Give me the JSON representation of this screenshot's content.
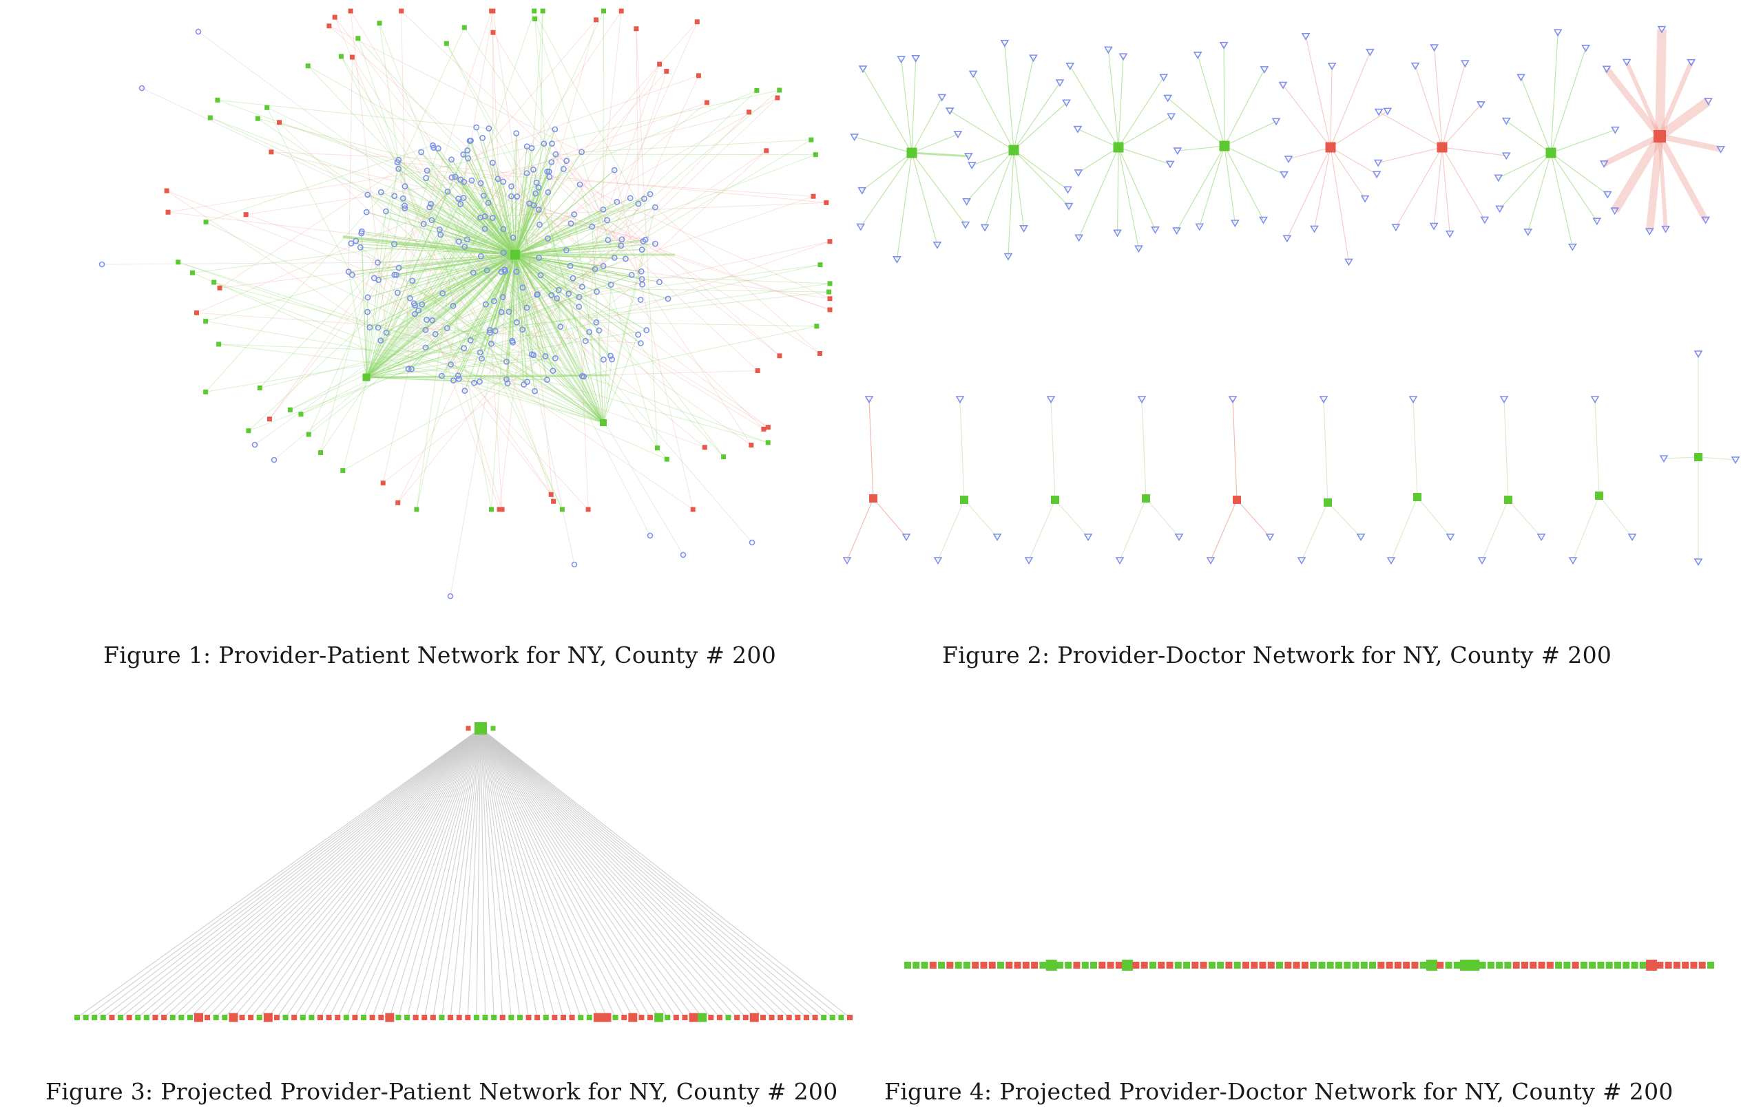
{
  "figures": [
    {
      "id": 1,
      "caption": "Figure 1: Provider-Patient Network for NY, County # 200"
    },
    {
      "id": 2,
      "caption": "Figure 2: Provider-Doctor Network for NY, County # 200"
    },
    {
      "id": 3,
      "caption": "Figure 3: Projected Provider-Patient Network for NY, County # 200"
    },
    {
      "id": 4,
      "caption": "Figure 4: Projected Provider-Doctor Network for NY, County # 200"
    }
  ],
  "colors": {
    "provider_green": "#5cc832",
    "provider_red": "#e8584a",
    "patient_blue": "#7f8ff0",
    "doctor_blue": "#7f8ff0",
    "edge_gray": "#c8c8c8",
    "edge_green": "#8fd66a",
    "edge_red": "#f0a8a0"
  },
  "icons": {
    "provider": "square-node-icon",
    "patient": "circle-node-icon",
    "doctor": "triangle-node-icon"
  }
}
